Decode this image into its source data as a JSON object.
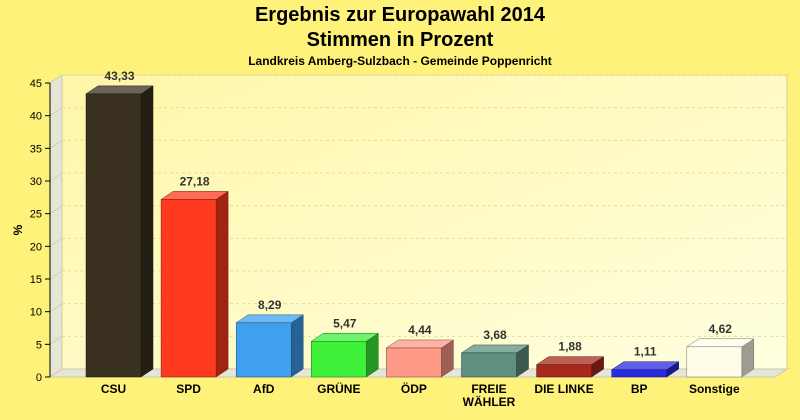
{
  "chart_data": {
    "type": "bar",
    "title_lines": [
      "Ergebnis zur Europawahl 2014",
      "Stimmen in Prozent"
    ],
    "subtitle": "Landkreis Amberg-Sulzbach - Gemeinde Poppenricht",
    "ylabel": "%",
    "ylim": [
      0,
      45
    ],
    "yticks": [
      0,
      5,
      10,
      15,
      20,
      25,
      30,
      35,
      40,
      45
    ],
    "grid": true,
    "categories": [
      [
        "CSU"
      ],
      [
        "SPD"
      ],
      [
        "AfD"
      ],
      [
        "GRÜNE"
      ],
      [
        "ÖDP"
      ],
      [
        "FREIE",
        "WÄHLER"
      ],
      [
        "DIE LINKE"
      ],
      [
        "BP"
      ],
      [
        "Sonstige"
      ]
    ],
    "values": [
      43.33,
      27.18,
      8.29,
      5.47,
      4.44,
      3.68,
      1.88,
      1.11,
      4.62
    ],
    "value_labels": [
      "43,33",
      "27,18",
      "8,29",
      "5,47",
      "4,44",
      "3,68",
      "1,88",
      "1,11",
      "4,62"
    ],
    "colors": [
      "#3a3020",
      "#ff3a1f",
      "#3ea0ef",
      "#3ef03a",
      "#ff9a88",
      "#5f9080",
      "#a8281c",
      "#2a2adf",
      "#fffce8"
    ]
  }
}
